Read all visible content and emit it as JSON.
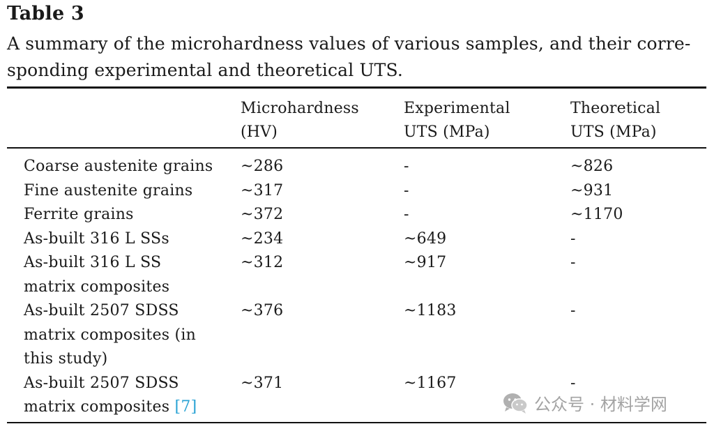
{
  "table": {
    "label": "Table 3",
    "caption_line1": "A summary of the microhardness values of various samples, and their corre-",
    "caption_line2": "sponding experimental and theoretical UTS.",
    "headers": [
      {
        "line1": "",
        "line2": ""
      },
      {
        "line1": "Microhardness",
        "line2": "(HV)"
      },
      {
        "line1": "Experimental",
        "line2": "UTS (MPa)"
      },
      {
        "line1": "Theoretical",
        "line2": "UTS (MPa)"
      }
    ],
    "rows": [
      {
        "sample": [
          "Coarse austenite grains"
        ],
        "hardness": "~286",
        "exp_uts": "-",
        "theo_uts": "~826"
      },
      {
        "sample": [
          "Fine austenite grains"
        ],
        "hardness": "~317",
        "exp_uts": "-",
        "theo_uts": "~931"
      },
      {
        "sample": [
          "Ferrite grains"
        ],
        "hardness": "~372",
        "exp_uts": "-",
        "theo_uts": "~1170"
      },
      {
        "sample": [
          "As-built 316 L SSs"
        ],
        "hardness": "~234",
        "exp_uts": "~649",
        "theo_uts": "-"
      },
      {
        "sample": [
          "As-built 316 L SS",
          "matrix composites"
        ],
        "hardness": "~312",
        "exp_uts": "~917",
        "theo_uts": "-"
      },
      {
        "sample": [
          "As-built 2507 SDSS",
          "matrix composites (in",
          "this study)"
        ],
        "hardness": "~376",
        "exp_uts": "~1183",
        "theo_uts": "-"
      },
      {
        "sample": [
          "As-built 2507 SDSS",
          "matrix composites "
        ],
        "reference": "[7]",
        "hardness": "~371",
        "exp_uts": "~1167",
        "theo_uts": "-"
      }
    ]
  },
  "watermark": {
    "text": "公众号 · 材料学网",
    "icon": "wechat-icon"
  }
}
